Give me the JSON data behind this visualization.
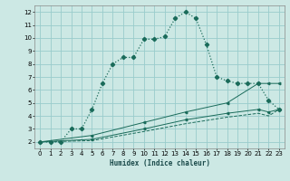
{
  "xlabel": "Humidex (Indice chaleur)",
  "bg_color": "#cce8e4",
  "grid_color": "#99cccc",
  "line_color": "#1a6b5a",
  "xlim": [
    -0.5,
    23.5
  ],
  "ylim": [
    1.5,
    12.5
  ],
  "yticks": [
    2,
    3,
    4,
    5,
    6,
    7,
    8,
    9,
    10,
    11,
    12
  ],
  "xticks": [
    0,
    1,
    2,
    3,
    4,
    5,
    6,
    7,
    8,
    9,
    10,
    11,
    12,
    13,
    14,
    15,
    16,
    17,
    18,
    19,
    20,
    21,
    22,
    23
  ],
  "main_x": [
    0,
    1,
    2,
    3,
    4,
    5,
    6,
    7,
    8,
    9,
    10,
    11,
    12,
    13,
    14,
    15,
    16,
    17,
    18,
    19,
    20,
    21,
    22,
    23
  ],
  "main_y": [
    2,
    2,
    2,
    3,
    3,
    4.5,
    6.5,
    8.0,
    8.5,
    8.5,
    9.9,
    9.9,
    10.1,
    11.5,
    12.0,
    11.5,
    9.5,
    7.0,
    6.7,
    6.5,
    6.5,
    6.5,
    5.2,
    4.5
  ],
  "line2_x": [
    0,
    5,
    10,
    14,
    18,
    21,
    22,
    23
  ],
  "line2_y": [
    2,
    2.5,
    3.5,
    4.3,
    5.0,
    6.5,
    6.5,
    6.5
  ],
  "line3_x": [
    0,
    5,
    10,
    14,
    18,
    21,
    22,
    23
  ],
  "line3_y": [
    2,
    2.2,
    3.0,
    3.7,
    4.2,
    4.5,
    4.3,
    4.5
  ],
  "line4_x": [
    0,
    5,
    10,
    14,
    18,
    21,
    22,
    23
  ],
  "line4_y": [
    2,
    2.1,
    2.8,
    3.4,
    3.9,
    4.2,
    4.0,
    4.5
  ]
}
